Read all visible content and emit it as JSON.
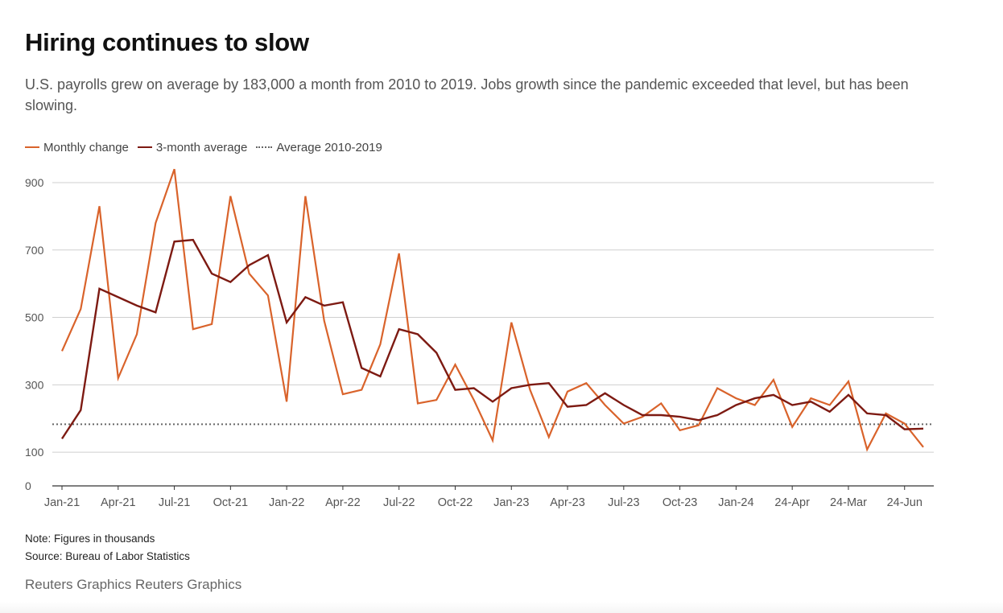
{
  "title": "Hiring continues to slow",
  "subtitle": "U.S. payrolls grew on average by 183,000 a month from 2010 to 2019. Jobs growth since the pandemic exceeded that level, but has been slowing.",
  "legend": {
    "monthly": "Monthly change",
    "avg3": "3-month average",
    "baseline": "Average 2010-2019"
  },
  "note": "Note: Figures in thousands",
  "source": "Source: Bureau of Labor Statistics",
  "credit": "Reuters Graphics Reuters Graphics",
  "colors": {
    "monthly": "#d9632b",
    "avg3": "#7d1a12",
    "baseline": "#666666",
    "grid": "#cfcfcf",
    "axis": "#333333",
    "tick_text": "#555555"
  },
  "chart_data": {
    "type": "line",
    "xlabel": "",
    "ylabel": "",
    "ylim": [
      0,
      900
    ],
    "yticks": [
      0,
      100,
      300,
      500,
      700,
      900
    ],
    "grid": true,
    "legend_placement": "top-left",
    "x_ticks": [
      {
        "index": 0,
        "label": "Jan-21"
      },
      {
        "index": 3,
        "label": "Apr-21"
      },
      {
        "index": 6,
        "label": "Jul-21"
      },
      {
        "index": 9,
        "label": "Oct-21"
      },
      {
        "index": 12,
        "label": "Jan-22"
      },
      {
        "index": 15,
        "label": "Apr-22"
      },
      {
        "index": 18,
        "label": "Jul-22"
      },
      {
        "index": 21,
        "label": "Oct-22"
      },
      {
        "index": 24,
        "label": "Jan-23"
      },
      {
        "index": 27,
        "label": "Apr-23"
      },
      {
        "index": 30,
        "label": "Jul-23"
      },
      {
        "index": 33,
        "label": "Oct-23"
      },
      {
        "index": 36,
        "label": "Jan-24"
      },
      {
        "index": 39,
        "label": "24-Apr"
      },
      {
        "index": 42,
        "label": "24-Mar"
      },
      {
        "index": 45,
        "label": "24-Jun"
      }
    ],
    "series": [
      {
        "name": "Monthly change",
        "values": [
          400,
          525,
          830,
          320,
          450,
          780,
          940,
          465,
          480,
          860,
          630,
          565,
          250,
          860,
          490,
          272,
          285,
          420,
          690,
          245,
          255,
          360,
          255,
          135,
          485,
          285,
          145,
          280,
          305,
          240,
          185,
          205,
          245,
          165,
          180,
          290,
          260,
          240,
          315,
          175,
          260,
          240,
          310,
          108,
          215,
          185,
          115
        ]
      },
      {
        "name": "3-month average",
        "values": [
          140,
          225,
          585,
          560,
          535,
          515,
          725,
          730,
          630,
          605,
          655,
          685,
          485,
          560,
          535,
          545,
          350,
          325,
          465,
          450,
          395,
          285,
          290,
          250,
          290,
          300,
          305,
          235,
          240,
          275,
          240,
          210,
          210,
          205,
          195,
          210,
          240,
          260,
          270,
          240,
          250,
          220,
          270,
          215,
          210,
          168,
          170
        ]
      },
      {
        "name": "Average 2010-2019",
        "values": [
          183,
          183
        ]
      }
    ]
  }
}
